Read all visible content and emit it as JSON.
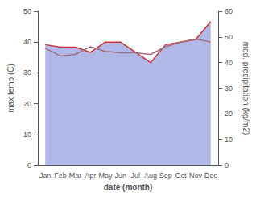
{
  "chart_data": {
    "type": "line",
    "categories": [
      "Jan",
      "Feb",
      "Mar",
      "Apr",
      "May",
      "Jun",
      "Jul",
      "Aug",
      "Sep",
      "Oct",
      "Nov",
      "Dec"
    ],
    "series": [
      {
        "type": "area",
        "axis": "y2",
        "color": "#b0b8e8",
        "values": [
          47,
          46,
          46,
          44,
          48,
          48,
          44,
          40,
          47,
          48,
          49,
          56
        ]
      },
      {
        "type": "line",
        "axis": "y2",
        "color": "#cc3333",
        "values": [
          47,
          46,
          46,
          44,
          48,
          48,
          44,
          40,
          47,
          48,
          49,
          56
        ]
      },
      {
        "type": "line",
        "color": "#a07080",
        "values": [
          38,
          35.5,
          36,
          38.5,
          37,
          36.5,
          36.5,
          36,
          38.5,
          40,
          41,
          40
        ]
      }
    ],
    "xlabel": "date (month)",
    "ylabel": "max temp (C)",
    "y2label": "med. precipitation (kg/m2)",
    "ylim": [
      0,
      50
    ],
    "yticks": [
      0,
      10,
      20,
      30,
      40,
      50
    ],
    "y2lim": [
      0,
      60
    ],
    "y2ticks": [
      0,
      10,
      20,
      30,
      40,
      50,
      60
    ],
    "grid": false
  }
}
